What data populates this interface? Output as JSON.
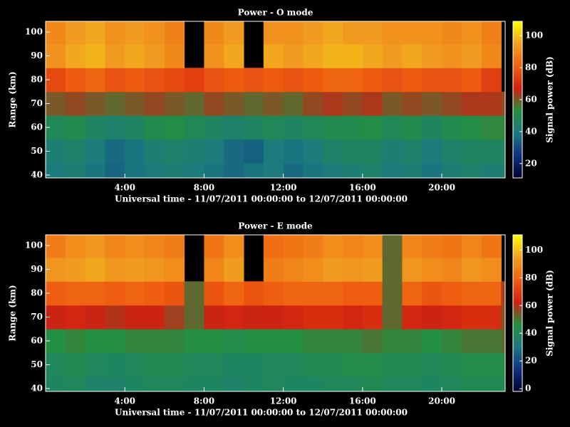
{
  "chart_data": [
    {
      "type": "heatmap",
      "title": "Power - O mode",
      "xlabel": "Universal time - 11/07/2011 00:00:00 to 12/07/2011 00:00:00",
      "ylabel": "Range (km)",
      "clabel": "Signal power (dB)",
      "x_bins": [
        0,
        1,
        2,
        3,
        4,
        5,
        6,
        7,
        8,
        9,
        10,
        11,
        12,
        13,
        14,
        15,
        16,
        17,
        18,
        19,
        20,
        21,
        22,
        23,
        23.2
      ],
      "y_bins": [
        38.8,
        45,
        55,
        65,
        75,
        85,
        95,
        104.5
      ],
      "z": [
        [
          40,
          42,
          38,
          35,
          38,
          40,
          42,
          40,
          38,
          36,
          38,
          40,
          36,
          38,
          40,
          42,
          44,
          40,
          42,
          38,
          42,
          44,
          42,
          44
        ],
        [
          42,
          44,
          40,
          36,
          38,
          42,
          44,
          42,
          40,
          36,
          34,
          40,
          38,
          40,
          44,
          46,
          46,
          42,
          44,
          40,
          44,
          46,
          46,
          46
        ],
        [
          48,
          50,
          46,
          44,
          46,
          50,
          52,
          48,
          46,
          44,
          46,
          48,
          46,
          48,
          50,
          50,
          52,
          48,
          50,
          46,
          50,
          52,
          54,
          54
        ],
        [
          60,
          62,
          60,
          58,
          60,
          62,
          60,
          58,
          62,
          60,
          58,
          60,
          58,
          62,
          64,
          62,
          64,
          60,
          62,
          60,
          62,
          64,
          64,
          62
        ],
        [
          76,
          80,
          82,
          78,
          80,
          78,
          76,
          74,
          78,
          80,
          78,
          80,
          78,
          80,
          82,
          82,
          80,
          78,
          80,
          78,
          78,
          80,
          74,
          null
        ],
        [
          92,
          96,
          98,
          94,
          96,
          94,
          90,
          null,
          92,
          96,
          null,
          96,
          94,
          96,
          98,
          98,
          96,
          94,
          96,
          94,
          92,
          94,
          90,
          null
        ],
        [
          90,
          94,
          96,
          92,
          94,
          92,
          88,
          null,
          90,
          94,
          null,
          92,
          92,
          94,
          96,
          94,
          94,
          92,
          92,
          92,
          90,
          92,
          88,
          null
        ]
      ],
      "xlim": [
        0,
        23.2
      ],
      "ylim": [
        38.8,
        104.5
      ],
      "xticks": [
        {
          "value": 4,
          "label": "4:00"
        },
        {
          "value": 8,
          "label": "8:00"
        },
        {
          "value": 12,
          "label": "12:00"
        },
        {
          "value": 16,
          "label": "16:00"
        },
        {
          "value": 20,
          "label": "20:00"
        }
      ],
      "yticks": [
        40,
        50,
        60,
        70,
        80,
        90,
        100
      ],
      "zlim": [
        11,
        109
      ],
      "cticks": [
        20,
        40,
        60,
        80,
        100
      ],
      "colorscale": [
        "#000030",
        "#103080",
        "#1a7a80",
        "#239040",
        "#d02010",
        "#f06010",
        "#f0a020",
        "#ffff00"
      ]
    },
    {
      "type": "heatmap",
      "title": "Power - E mode",
      "xlabel": "Universal time - 11/07/2011 00:00:00 to 12/07/2011 00:00:00",
      "ylabel": "Range (km)",
      "clabel": "Signal power (dB)",
      "x_bins": [
        0,
        1,
        2,
        3,
        4,
        5,
        6,
        7,
        8,
        9,
        10,
        11,
        12,
        13,
        14,
        15,
        16,
        17,
        18,
        19,
        20,
        21,
        22,
        23,
        23.2
      ],
      "y_bins": [
        38.8,
        45,
        55,
        65,
        75,
        85,
        95,
        104.5
      ],
      "z": [
        [
          38,
          40,
          36,
          36,
          38,
          40,
          40,
          38,
          38,
          36,
          38,
          40,
          38,
          38,
          40,
          40,
          42,
          40,
          40,
          38,
          40,
          42,
          42,
          42
        ],
        [
          40,
          42,
          40,
          38,
          40,
          42,
          42,
          40,
          40,
          38,
          38,
          40,
          40,
          42,
          42,
          44,
          44,
          42,
          42,
          40,
          42,
          44,
          44,
          46
        ],
        [
          46,
          48,
          46,
          46,
          48,
          48,
          48,
          46,
          46,
          44,
          46,
          46,
          46,
          48,
          48,
          48,
          50,
          48,
          48,
          46,
          48,
          50,
          50,
          52
        ],
        [
          62,
          64,
          62,
          60,
          62,
          62,
          58,
          52,
          62,
          64,
          62,
          62,
          64,
          66,
          66,
          64,
          66,
          52,
          64,
          62,
          64,
          66,
          66,
          56
        ],
        [
          78,
          80,
          80,
          78,
          80,
          78,
          76,
          52,
          76,
          80,
          76,
          78,
          80,
          80,
          80,
          78,
          78,
          52,
          80,
          76,
          78,
          80,
          80,
          58
        ],
        [
          92,
          94,
          96,
          92,
          94,
          92,
          90,
          null,
          88,
          94,
          null,
          86,
          88,
          90,
          94,
          92,
          94,
          52,
          92,
          90,
          88,
          92,
          90,
          null
        ],
        [
          86,
          90,
          92,
          88,
          90,
          88,
          86,
          null,
          84,
          90,
          null,
          82,
          84,
          86,
          90,
          88,
          90,
          52,
          88,
          86,
          84,
          88,
          84,
          null
        ]
      ],
      "xlim": [
        0,
        23.2
      ],
      "ylim": [
        38.8,
        104.5
      ],
      "xticks": [
        {
          "value": 4,
          "label": "4:00"
        },
        {
          "value": 8,
          "label": "8:00"
        },
        {
          "value": 12,
          "label": "12:00"
        },
        {
          "value": 16,
          "label": "16:00"
        },
        {
          "value": 20,
          "label": "20:00"
        }
      ],
      "yticks": [
        40,
        50,
        60,
        70,
        80,
        90,
        100
      ],
      "zlim": [
        -2,
        111
      ],
      "cticks": [
        0,
        20,
        40,
        60,
        80,
        100
      ],
      "colorscale": [
        "#000030",
        "#103080",
        "#1a7a80",
        "#239040",
        "#d02010",
        "#f06010",
        "#f0a020",
        "#ffff00"
      ]
    }
  ]
}
